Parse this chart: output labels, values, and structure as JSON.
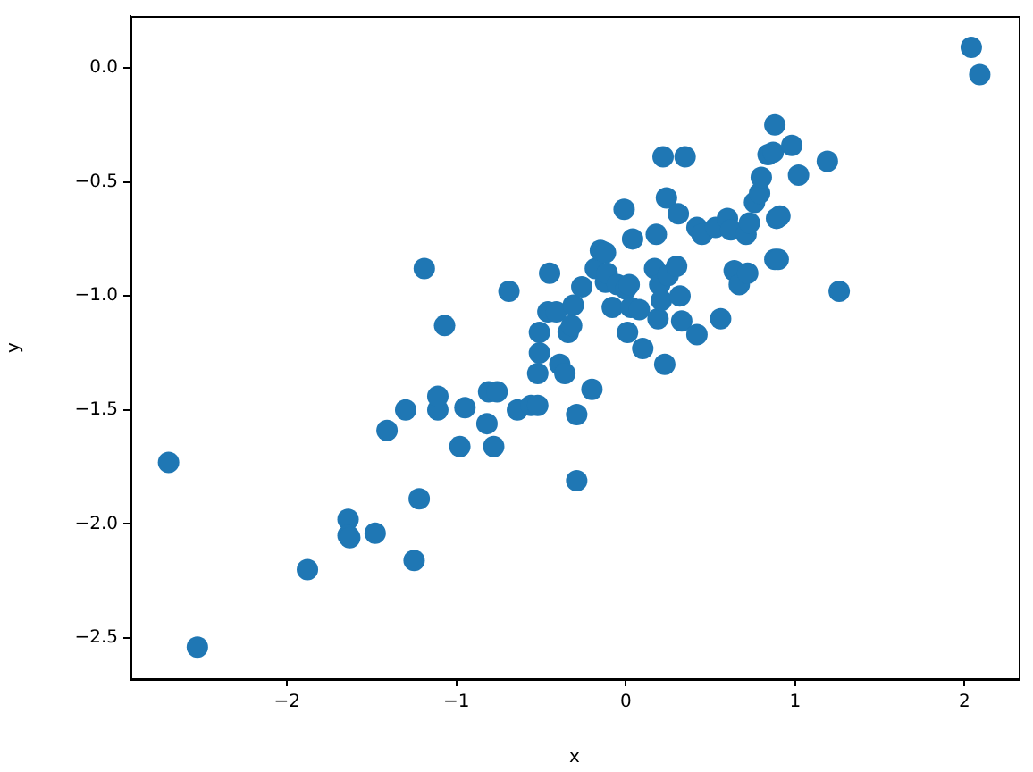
{
  "chart_data": {
    "type": "scatter",
    "xlabel": "x",
    "ylabel": "y",
    "marker": "circle",
    "grid": false,
    "legend": false,
    "xlim": [
      -2.925,
      2.32
    ],
    "ylim": [
      -2.68,
      0.227
    ],
    "xticks": [
      {
        "value": -2,
        "label": "−2"
      },
      {
        "value": -1,
        "label": "−1"
      },
      0,
      1,
      2
    ],
    "yticks": [
      {
        "value": -2.5,
        "label": "−2.5"
      },
      {
        "value": -2,
        "label": "−2.0"
      },
      {
        "value": -1.5,
        "label": "−1.5"
      },
      {
        "value": -1,
        "label": "−1.0"
      },
      {
        "value": -0.5,
        "label": "−0.5"
      },
      {
        "value": 0,
        "label": "0.0"
      }
    ],
    "series": [
      {
        "color": "#1f77b4",
        "x": [
          -2.7,
          -2.53,
          -1.88,
          -1.64,
          -1.64,
          -1.63,
          -1.48,
          -1.41,
          -1.3,
          -1.25,
          -1.22,
          -1.19,
          -1.11,
          -1.11,
          -1.07,
          -0.98,
          -0.95,
          -0.81,
          -0.76,
          -0.82,
          -0.78,
          -0.69,
          -0.64,
          -0.56,
          -0.52,
          -0.52,
          -0.51,
          -0.51,
          -0.46,
          -0.41,
          -0.45,
          -0.39,
          -0.36,
          -0.34,
          -0.32,
          -0.31,
          -0.29,
          -0.29,
          -0.26,
          -0.2,
          -0.18,
          -0.15,
          -0.12,
          -0.12,
          -0.11,
          -0.08,
          -0.05,
          -0.01,
          0.0,
          0.01,
          0.02,
          0.03,
          0.04,
          0.08,
          0.1,
          0.17,
          0.2,
          0.18,
          0.19,
          0.21,
          0.22,
          0.24,
          0.25,
          0.23,
          0.3,
          0.31,
          0.32,
          0.33,
          0.35,
          0.42,
          0.42,
          0.45,
          0.53,
          0.56,
          0.6,
          0.62,
          0.64,
          0.67,
          0.72,
          0.71,
          0.73,
          0.76,
          0.79,
          0.8,
          0.84,
          0.87,
          0.88,
          0.89,
          0.91,
          0.88,
          0.9,
          0.98,
          1.02,
          1.19,
          1.26,
          2.04,
          2.09
        ],
        "values": [
          -1.73,
          -2.54,
          -2.2,
          -1.98,
          -2.05,
          -2.06,
          -2.04,
          -1.59,
          -1.5,
          -2.16,
          -1.89,
          -0.88,
          -1.5,
          -1.44,
          -1.13,
          -1.66,
          -1.49,
          -1.42,
          -1.42,
          -1.56,
          -1.66,
          -0.98,
          -1.5,
          -1.48,
          -1.48,
          -1.34,
          -1.16,
          -1.25,
          -1.07,
          -1.07,
          -0.9,
          -1.3,
          -1.34,
          -1.16,
          -1.13,
          -1.04,
          -1.52,
          -1.81,
          -0.96,
          -1.41,
          -0.88,
          -0.8,
          -0.81,
          -0.94,
          -0.9,
          -1.05,
          -0.95,
          -0.62,
          -0.97,
          -1.16,
          -0.95,
          -1.05,
          -0.75,
          -1.06,
          -1.23,
          -0.88,
          -0.95,
          -0.73,
          -1.1,
          -1.02,
          -0.39,
          -0.57,
          -0.91,
          -1.3,
          -0.87,
          -0.64,
          -1.0,
          -1.11,
          -0.39,
          -1.17,
          -0.7,
          -0.73,
          -0.7,
          -1.1,
          -0.66,
          -0.71,
          -0.89,
          -0.95,
          -0.9,
          -0.73,
          -0.68,
          -0.59,
          -0.55,
          -0.48,
          -0.38,
          -0.37,
          -0.25,
          -0.66,
          -0.65,
          -0.84,
          -0.84,
          -0.34,
          -0.47,
          -0.41,
          -0.98,
          0.09,
          -0.03
        ]
      }
    ]
  }
}
